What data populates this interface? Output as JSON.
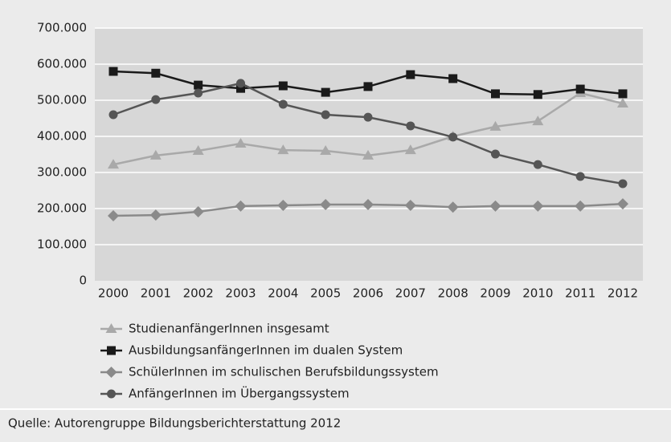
{
  "chart_data": {
    "type": "line",
    "categories": [
      "2000",
      "2001",
      "2002",
      "2003",
      "2004",
      "2005",
      "2006",
      "2007",
      "2008",
      "2009",
      "2010",
      "2011",
      "2012"
    ],
    "series": [
      {
        "name": "StudienanfängerInnen insgesamt",
        "color": "#a9a9a9",
        "marker": "triangle",
        "values": [
          322,
          347,
          360,
          380,
          362,
          360,
          347,
          362,
          400,
          427,
          442,
          520,
          491
        ]
      },
      {
        "name": "AusbildungsanfängerInnen im dualen System",
        "color": "#1a1a1a",
        "marker": "square",
        "values": [
          580,
          575,
          542,
          533,
          540,
          522,
          538,
          571,
          560,
          518,
          516,
          531,
          518
        ]
      },
      {
        "name": "SchülerInnen im schulischen Berufsbildungssystem",
        "color": "#8a8a8a",
        "marker": "diamond",
        "values": [
          180,
          182,
          191,
          207,
          209,
          211,
          211,
          209,
          204,
          207,
          207,
          207,
          213
        ]
      },
      {
        "name": "AnfängerInnen im Übergangssystem",
        "color": "#555555",
        "marker": "circle",
        "values": [
          460,
          502,
          520,
          547,
          489,
          460,
          453,
          429,
          398,
          351,
          322,
          289,
          269
        ]
      }
    ],
    "ylim": [
      0,
      700
    ],
    "yticks": [
      0,
      {
        "value": 100,
        "label": "100.000"
      },
      {
        "value": 200,
        "label": "200.000"
      },
      {
        "value": 300,
        "label": "300.000"
      },
      {
        "value": 400,
        "label": "400.000"
      },
      {
        "value": 500,
        "label": "500.000"
      },
      {
        "value": 600,
        "label": "600.000"
      },
      {
        "value": 700,
        "label": "700.000"
      }
    ],
    "grid": true,
    "source": "Quelle: Autorengruppe Bildungsberichterstattung 2012"
  }
}
